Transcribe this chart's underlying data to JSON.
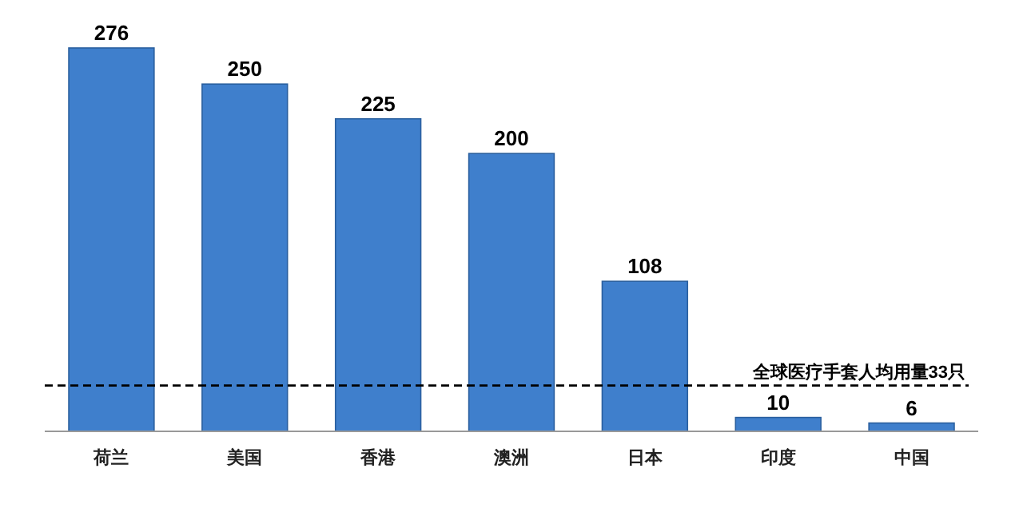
{
  "chart_data": {
    "type": "bar",
    "categories": [
      "荷兰",
      "美国",
      "香港",
      "澳洲",
      "日本",
      "印度",
      "中国"
    ],
    "values": [
      276,
      250,
      225,
      200,
      108,
      10,
      6
    ],
    "color": "#3f7fcc",
    "data_labels": true,
    "ref_lines": [
      {
        "axis": "y",
        "value": 33,
        "label": "全球医疗手套人均用量33只",
        "color": "#000000",
        "line_style": "dashed"
      }
    ]
  }
}
